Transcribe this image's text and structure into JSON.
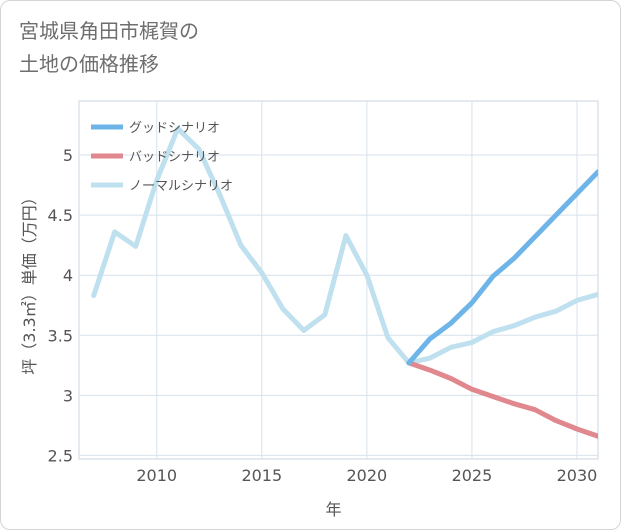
{
  "chart_data": {
    "type": "line",
    "title": "宮城県角田市梶賀の\n土地の価格推移",
    "xlabel": "年",
    "ylabel": "坪（3.3㎡）単価（万円）",
    "xlim": [
      2006.3,
      2031
    ],
    "ylim": [
      2.47,
      5.45
    ],
    "xticks": [
      2010,
      2015,
      2020,
      2025,
      2030
    ],
    "yticks": [
      2.5,
      3,
      3.5,
      4,
      4.5,
      5
    ],
    "grid": true,
    "legend_position": "top-left",
    "series": [
      {
        "name": "グッドシナリオ",
        "color": "#6db5e8",
        "x": [
          2022,
          2023,
          2024,
          2025,
          2026,
          2027,
          2028,
          2029,
          2030,
          2031
        ],
        "y": [
          3.27,
          3.47,
          3.6,
          3.77,
          3.99,
          4.14,
          4.32,
          4.5,
          4.68,
          4.86
        ]
      },
      {
        "name": "バッドシナリオ",
        "color": "#e0888e",
        "x": [
          2022,
          2023,
          2024,
          2025,
          2026,
          2027,
          2028,
          2029,
          2030,
          2031
        ],
        "y": [
          3.27,
          3.21,
          3.14,
          3.05,
          2.99,
          2.93,
          2.88,
          2.79,
          2.72,
          2.66
        ]
      },
      {
        "name": "ノーマルシナリオ",
        "color": "#bfe0ee",
        "x": [
          2007,
          2008,
          2009,
          2010,
          2011,
          2012,
          2013,
          2014,
          2015,
          2016,
          2017,
          2018,
          2019,
          2020,
          2021,
          2022,
          2023,
          2024,
          2025,
          2026,
          2027,
          2028,
          2029,
          2030,
          2031
        ],
        "y": [
          3.83,
          4.36,
          4.24,
          4.79,
          5.22,
          5.05,
          4.67,
          4.25,
          4.02,
          3.72,
          3.54,
          3.67,
          4.33,
          4.0,
          3.48,
          3.27,
          3.31,
          3.4,
          3.44,
          3.53,
          3.58,
          3.65,
          3.7,
          3.79,
          3.84
        ]
      }
    ]
  }
}
